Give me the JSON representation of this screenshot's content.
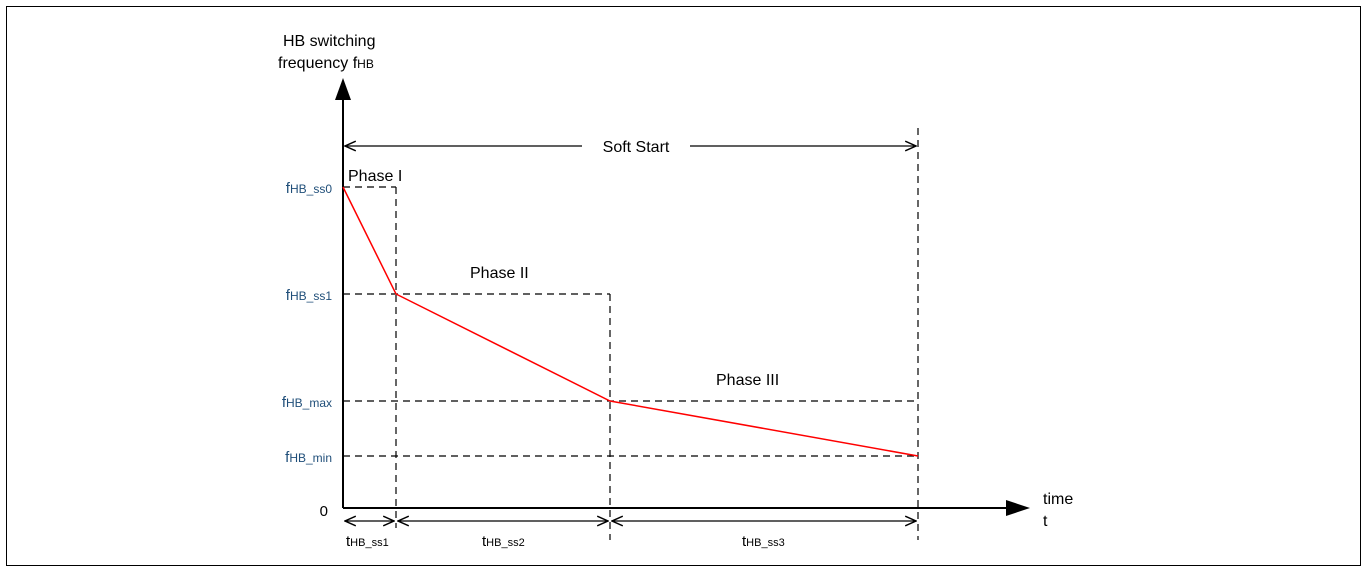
{
  "y_axis_label": {
    "line1": "HB switching",
    "line2_main": "frequency f",
    "line2_sub": "HB"
  },
  "x_axis_label": {
    "line1": "time",
    "line2": "t"
  },
  "origin_label": "0",
  "soft_start_label": "Soft Start",
  "phases": [
    "Phase I",
    "Phase II",
    "Phase III"
  ],
  "freq_labels": [
    {
      "main": "f",
      "sub": "HB_ss0"
    },
    {
      "main": "f",
      "sub": "HB_ss1"
    },
    {
      "main": "f",
      "sub": "HB_max"
    },
    {
      "main": "f",
      "sub": "HB_min"
    }
  ],
  "time_labels": [
    {
      "main": "t",
      "sub": "HB_ss1"
    },
    {
      "main": "t",
      "sub": "HB_ss2"
    },
    {
      "main": "t",
      "sub": "HB_ss3"
    }
  ],
  "colors": {
    "curve": "#ff0000",
    "freq_label": "#1f4e79",
    "lines": "#000000"
  }
}
